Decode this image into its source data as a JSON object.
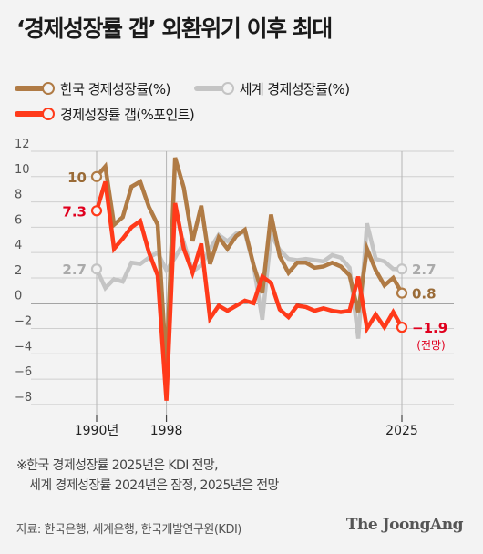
{
  "title": "‘경제성장률 갭’ 외환위기 이후 최대",
  "legend": [
    {
      "label": "한국 경제성장률(%)",
      "color": "#b07b45"
    },
    {
      "label": "세계 경제성장률(%)",
      "color": "#c4c4c4"
    },
    {
      "label": "경제성장률 갭(%포인트)",
      "color": "#ff3a1a"
    }
  ],
  "chart_data": {
    "type": "line",
    "x": [
      1990,
      1991,
      1992,
      1993,
      1994,
      1995,
      1996,
      1997,
      1998,
      1999,
      2000,
      2001,
      2002,
      2003,
      2004,
      2005,
      2006,
      2007,
      2008,
      2009,
      2010,
      2011,
      2012,
      2013,
      2014,
      2015,
      2016,
      2017,
      2018,
      2019,
      2020,
      2021,
      2022,
      2023,
      2024,
      2025
    ],
    "series": [
      {
        "name": "한국 경제성장률",
        "color": "#b07b45",
        "values": [
          10.0,
          10.8,
          6.2,
          6.8,
          9.2,
          9.6,
          7.6,
          6.2,
          -5.1,
          11.5,
          9.1,
          4.9,
          7.7,
          3.1,
          5.2,
          4.3,
          5.3,
          5.8,
          3.0,
          0.8,
          7.0,
          3.7,
          2.4,
          3.2,
          3.2,
          2.8,
          2.9,
          3.2,
          2.9,
          2.2,
          -0.7,
          4.3,
          2.6,
          1.4,
          2.0,
          0.8
        ]
      },
      {
        "name": "세계 경제성장률",
        "color": "#c4c4c4",
        "values": [
          2.7,
          1.2,
          1.9,
          1.7,
          3.2,
          3.1,
          3.6,
          4.0,
          2.6,
          3.6,
          4.8,
          2.5,
          3.0,
          4.3,
          5.4,
          4.9,
          5.5,
          5.6,
          3.0,
          -1.3,
          5.4,
          4.2,
          3.5,
          3.4,
          3.5,
          3.4,
          3.3,
          3.8,
          3.6,
          2.8,
          -2.8,
          6.3,
          3.5,
          3.3,
          2.7,
          2.7
        ]
      },
      {
        "name": "경제성장률 갭",
        "color": "#ff3a1a",
        "values": [
          7.3,
          9.6,
          4.3,
          5.1,
          6.0,
          6.5,
          4.0,
          2.2,
          -7.7,
          7.9,
          4.3,
          2.4,
          4.7,
          -1.2,
          -0.2,
          -0.6,
          -0.2,
          0.2,
          0.0,
          2.1,
          1.6,
          -0.5,
          -1.1,
          -0.2,
          -0.3,
          -0.6,
          -0.4,
          -0.6,
          -0.7,
          -0.6,
          2.1,
          -2.0,
          -0.9,
          -1.9,
          -0.7,
          -1.9
        ]
      }
    ],
    "ylim": [
      -8.8,
      12
    ],
    "yticks": [
      -8,
      -6,
      -4,
      -2,
      0,
      2,
      4,
      6,
      8,
      10,
      12
    ],
    "xtick_labels": [
      {
        "x": 1990,
        "label": "1990년"
      },
      {
        "x": 1998,
        "label": "1998"
      },
      {
        "x": 2025,
        "label": "2025"
      }
    ],
    "grid": true,
    "annotations": [
      {
        "series": 0,
        "index": 0,
        "text": "10",
        "side": "left"
      },
      {
        "series": 2,
        "index": 0,
        "text": "7.3",
        "side": "left"
      },
      {
        "series": 1,
        "index": 0,
        "text": "2.7",
        "side": "left"
      },
      {
        "series": 1,
        "index": 35,
        "text": "2.7",
        "side": "right"
      },
      {
        "series": 0,
        "index": 35,
        "text": "0.8",
        "side": "right"
      },
      {
        "series": 2,
        "index": 35,
        "text": "−1.9",
        "side": "right"
      },
      {
        "series": 2,
        "index": 35,
        "text": "(전망)",
        "side": "below"
      }
    ]
  },
  "notes": [
    "※한국 경제성장률 2025년은 KDI 전망,",
    "세계 경제성장률 2024년은 잠정, 2025년은 전망"
  ],
  "source": "자료: 한국은행, 세계은행, 한국개발연구원(KDI)",
  "brand": "The JoongAng"
}
